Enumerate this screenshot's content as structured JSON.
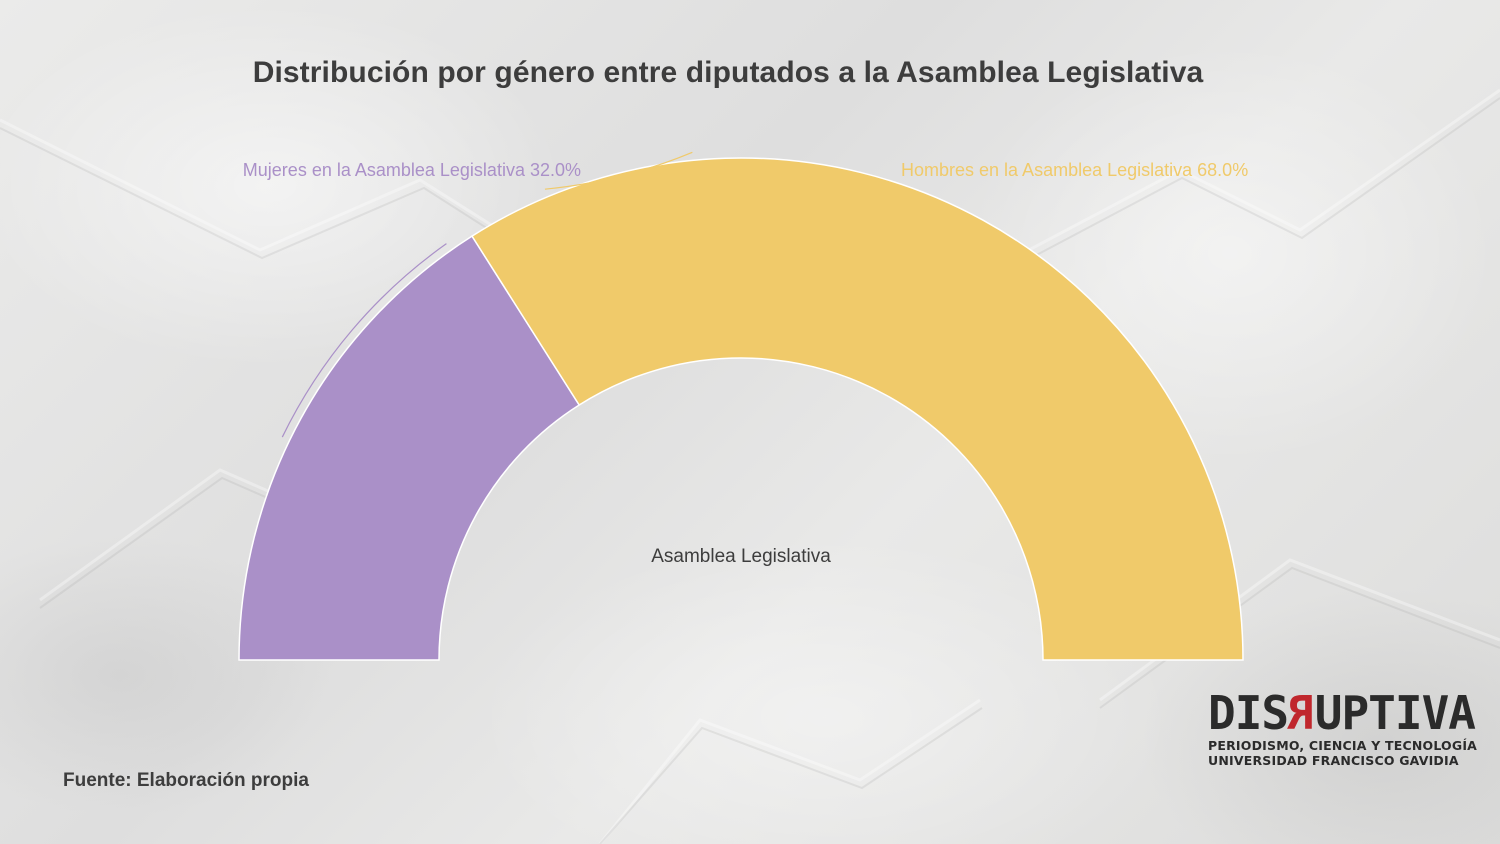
{
  "title": "Distribución por género entre diputados a la Asamblea Legislativa",
  "source": "Fuente: Elaboración propia",
  "logo": {
    "word_before": "DIS",
    "word_r": "R",
    "word_after": "UPTIVA",
    "line1": "PERIODISMO, CIENCIA Y TECNOLOGÍA",
    "line2": "UNIVERSIDAD FRANCISCO GAVIDIA",
    "accent_color": "#c0272d",
    "text_color": "#2b2b2b"
  },
  "chart_data": {
    "type": "pie",
    "variant": "semi-donut",
    "center_label": "Asamblea Legislativa",
    "slices": [
      {
        "label": "Mujeres en la Asamblea Legislativa",
        "value": 32.0,
        "display": "Mujeres en la Asamblea Legislativa 32.0%",
        "color": "#aa90c8"
      },
      {
        "label": "Hombres en la Asamblea Legislativa",
        "value": 68.0,
        "display": "Hombres en la Asamblea Legislativa 68.0%",
        "color": "#f0ca6a"
      }
    ],
    "legend": "none"
  }
}
